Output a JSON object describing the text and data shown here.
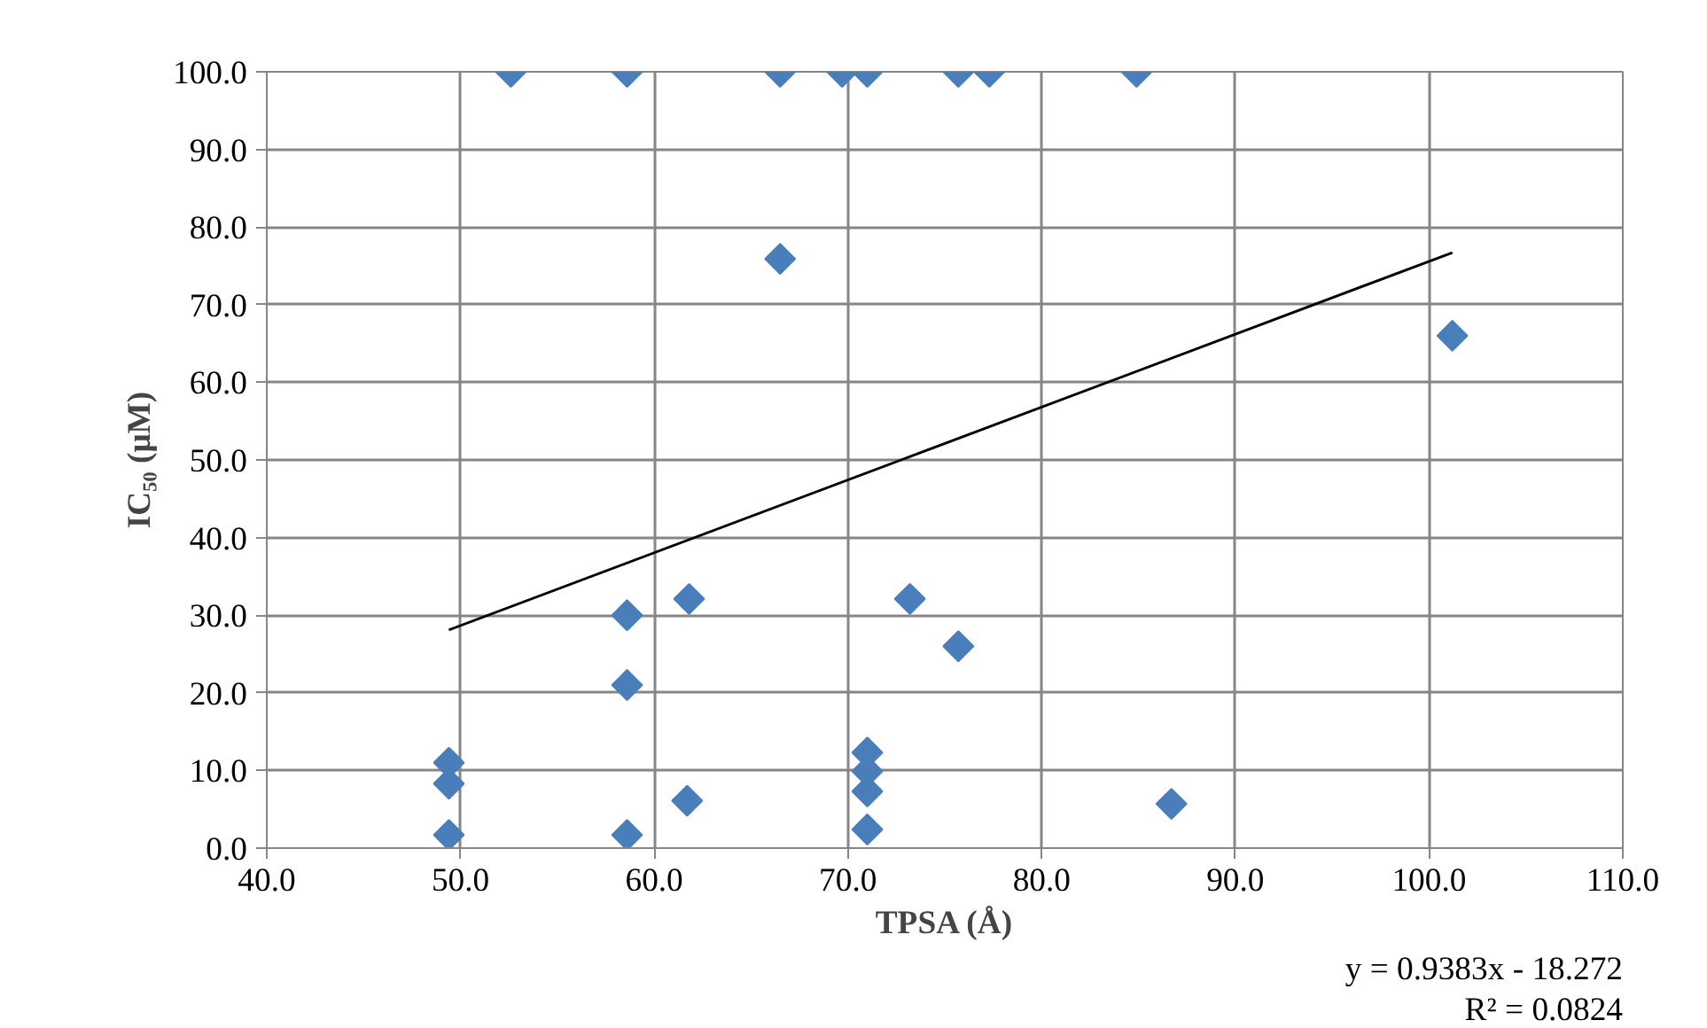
{
  "chart_data": {
    "type": "scatter",
    "xlabel": "TPSA (Å)",
    "ylabel": "IC₅₀ (μM)",
    "marker": "diamond",
    "grid": true,
    "xlim": [
      40,
      110
    ],
    "ylim": [
      0,
      100
    ],
    "xticks": [
      {
        "value": 40,
        "label": "40.0"
      },
      {
        "value": 50,
        "label": "50.0"
      },
      {
        "value": 60,
        "label": "60.0"
      },
      {
        "value": 70,
        "label": "70.0"
      },
      {
        "value": 80,
        "label": "80.0"
      },
      {
        "value": 90,
        "label": "90.0"
      },
      {
        "value": 100,
        "label": "100.0"
      },
      {
        "value": 110,
        "label": "110.0"
      }
    ],
    "yticks": [
      {
        "value": 0,
        "label": "0.0"
      },
      {
        "value": 10,
        "label": "10.0"
      },
      {
        "value": 20,
        "label": "20.0"
      },
      {
        "value": 30,
        "label": "30.0"
      },
      {
        "value": 40,
        "label": "40.0"
      },
      {
        "value": 50,
        "label": "50.0"
      },
      {
        "value": 60,
        "label": "60.0"
      },
      {
        "value": 70,
        "label": "70.0"
      },
      {
        "value": 80,
        "label": "80.0"
      },
      {
        "value": 90,
        "label": "90.0"
      },
      {
        "value": 100,
        "label": "100.0"
      }
    ],
    "series": [
      {
        "color": "#4a7ebb",
        "x": [
          52.6,
          58.6,
          66.5,
          69.7,
          71.0,
          75.7,
          77.3,
          84.9,
          66.5,
          101.2,
          49.4,
          49.4,
          49.4,
          58.6,
          58.6,
          58.6,
          61.8,
          61.7,
          71.0,
          71.0,
          71.0,
          71.0,
          73.2,
          75.7,
          86.7
        ],
        "values": [
          100,
          100,
          100,
          100,
          100,
          100,
          100,
          100,
          75.9,
          66.0,
          1.7,
          11.0,
          8.3,
          30.0,
          21.0,
          1.7,
          32.1,
          6.1,
          12.3,
          9.9,
          7.3,
          2.4,
          32.1,
          26.0,
          5.7
        ]
      },
      {
        "type": "line",
        "color": "#000000",
        "marker": "none",
        "x": [
          49.4,
          101.2
        ],
        "values": [
          28.1,
          76.7
        ]
      }
    ],
    "annotations": [
      "y = 0.9383x - 18.272",
      "R² = 0.0824"
    ]
  }
}
